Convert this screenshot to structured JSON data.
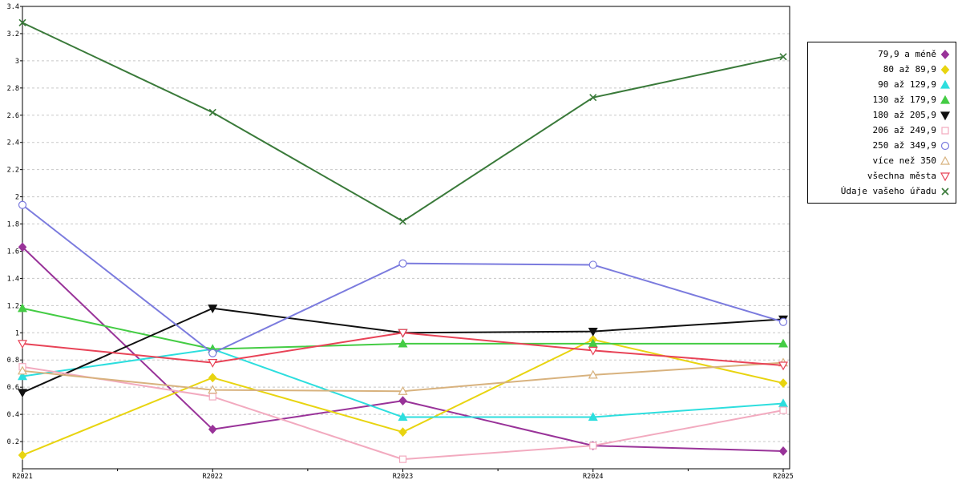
{
  "chart_data": {
    "type": "line",
    "title": "",
    "xlabel": "",
    "ylabel": "",
    "x_categories": [
      "R2021",
      "R2022",
      "R2023",
      "R2024",
      "R2025"
    ],
    "ylim": [
      0,
      3.4
    ],
    "y_tick_step": 0.2,
    "y_tick_labels": [
      "0.2",
      "0.4",
      "0.6",
      "0.8",
      "1",
      "1.2",
      "1.4",
      "1.6",
      "1.8",
      "2",
      "2.2",
      "2.4",
      "2.6",
      "2.8",
      "3",
      "3.2",
      "3.4"
    ],
    "grid": "horizontal-dashed",
    "grid_color": "#c8c8c8",
    "plot_border_color": "#000000",
    "legend_position": "right",
    "series": [
      {
        "name": "79,9 a méně",
        "color": "#993399",
        "marker": "diamond",
        "filled": true,
        "values": [
          1.63,
          0.29,
          0.5,
          0.17,
          0.13
        ]
      },
      {
        "name": "80 až 89,9",
        "color": "#e8d410",
        "marker": "diamond",
        "filled": true,
        "values": [
          0.1,
          0.67,
          0.27,
          0.95,
          0.63
        ]
      },
      {
        "name": "90 až 129,9",
        "color": "#2ddede",
        "marker": "triangle-up",
        "filled": true,
        "values": [
          0.68,
          0.88,
          0.38,
          0.38,
          0.48
        ]
      },
      {
        "name": "130 až 179,9",
        "color": "#44cc44",
        "marker": "triangle-up",
        "filled": true,
        "values": [
          1.18,
          0.88,
          0.92,
          0.92,
          0.92
        ]
      },
      {
        "name": "180 až 205,9",
        "color": "#111111",
        "marker": "triangle-down",
        "filled": true,
        "values": [
          0.56,
          1.18,
          1.0,
          1.01,
          1.1
        ]
      },
      {
        "name": "206 až 249,9",
        "color": "#f2aabf",
        "marker": "square",
        "filled": false,
        "values": [
          0.75,
          0.53,
          0.07,
          0.17,
          0.43
        ]
      },
      {
        "name": "250 až 349,9",
        "color": "#7b7bde",
        "marker": "circle",
        "filled": false,
        "values": [
          1.94,
          0.85,
          1.51,
          1.5,
          1.08
        ]
      },
      {
        "name": "více než 350",
        "color": "#d8b27e",
        "marker": "triangle-up",
        "filled": false,
        "values": [
          0.72,
          0.58,
          0.57,
          0.69,
          0.78
        ]
      },
      {
        "name": "všechna města",
        "color": "#e84357",
        "marker": "triangle-down",
        "filled": false,
        "values": [
          0.92,
          0.78,
          1.0,
          0.87,
          0.76
        ]
      },
      {
        "name": "Údaje vašeho úřadu",
        "color": "#3a7a3a",
        "marker": "cross",
        "filled": false,
        "values": [
          3.28,
          2.62,
          1.82,
          2.73,
          3.03
        ]
      }
    ]
  }
}
